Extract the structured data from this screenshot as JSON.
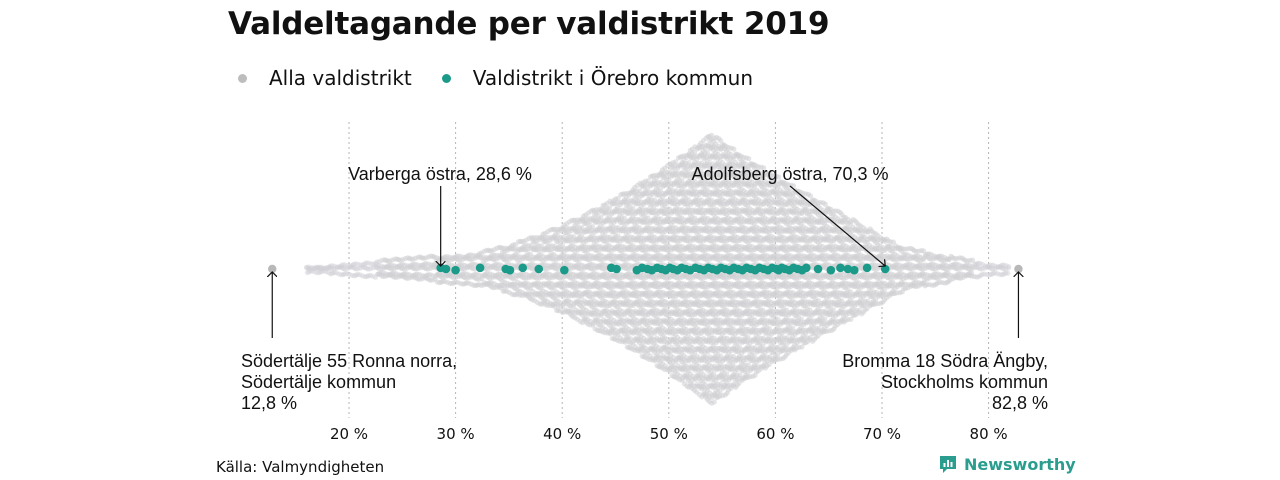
{
  "chart_data": {
    "type": "scatter",
    "title": "Valdeltagande per valdistrikt 2019",
    "xlim": [
      10,
      85
    ],
    "xticks": [
      20,
      30,
      40,
      50,
      60,
      70,
      80
    ],
    "xtick_labels": [
      "20 %",
      "30 %",
      "40 %",
      "50 %",
      "60 %",
      "70 %",
      "80 %"
    ],
    "grid": "vertical dotted",
    "legend_position": "top-left",
    "series": [
      {
        "name": "Alla valdistrikt",
        "color": "#bdbdbd",
        "description_shape": "beeswarm",
        "extremes": [
          12.8,
          82.8
        ]
      },
      {
        "name": "Valdistrikt i Örebro kommun",
        "color": "#1b9a8a",
        "values": [
          28.6,
          29.1,
          30.0,
          32.3,
          34.7,
          35.1,
          36.3,
          37.8,
          40.2,
          44.6,
          45.1,
          47.0,
          47.5,
          48.0,
          48.4,
          48.9,
          49.3,
          49.7,
          50.1,
          50.4,
          50.8,
          51.2,
          51.6,
          52.0,
          52.5,
          52.9,
          53.3,
          53.7,
          54.1,
          54.5,
          54.9,
          55.3,
          55.7,
          56.1,
          56.5,
          56.9,
          57.3,
          57.7,
          58.1,
          58.5,
          58.9,
          59.3,
          59.7,
          60.1,
          60.3,
          60.6,
          60.9,
          61.3,
          61.7,
          62.1,
          62.5,
          62.9,
          64.0,
          65.2,
          66.1,
          66.8,
          67.4,
          68.6,
          70.3
        ]
      }
    ],
    "annotations": [
      {
        "text": "Varberga östra, 28,6 %",
        "x": 28.6
      },
      {
        "text": "Adolfsberg östra, 70,3 %",
        "x": 70.3
      },
      {
        "lines": [
          "Södertälje 55 Ronna norra,",
          "Södertälje kommun",
          "12,8 %"
        ],
        "x": 12.8
      },
      {
        "lines": [
          "Bromma 18 Södra Ängby,",
          "Stockholms kommun",
          "82,8 %"
        ],
        "x": 82.8
      }
    ]
  },
  "legend": [
    {
      "label": "Alla valdistrikt",
      "color": "#bdbdbd"
    },
    {
      "label": "Valdistrikt i Örebro kommun",
      "color": "#1b9a8a"
    }
  ],
  "source": "Källa: Valmyndigheten",
  "brand": "Newsworthy"
}
